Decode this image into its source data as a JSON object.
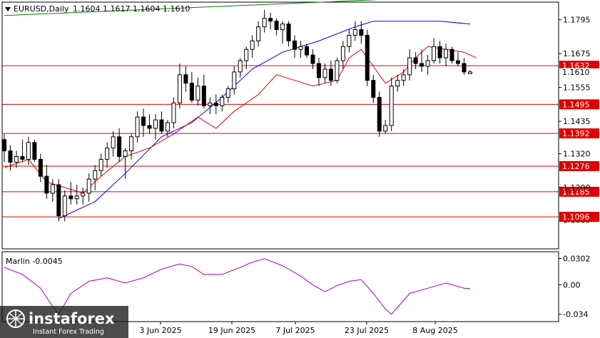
{
  "chart_data": [
    {
      "type": "candlestick",
      "header": {
        "symbol": "EURUSD,Daily",
        "ohlc": "1.1604 1.1617 1.1604 1.1610"
      },
      "y_ticks": [
        "1.1795",
        "1.1675",
        "1.1555",
        "1.1435",
        "1.1320",
        "1.1200"
      ],
      "y_ticks_partial": [
        "1.1610",
        "1.1085"
      ],
      "x_ticks": [
        "3 Jun 2025",
        "19 Jun 2025",
        "7 Jul 2025",
        "23 Jul 2025",
        "8 Aug 2025"
      ],
      "ylim": [
        1.0985,
        1.1855
      ],
      "current_price": 1.161,
      "levels": [
        {
          "value": 1.1632,
          "label": "1.1632"
        },
        {
          "value": 1.1495,
          "label": "1.1495"
        },
        {
          "value": 1.1392,
          "label": "1.1392"
        },
        {
          "value": 1.1276,
          "label": "1.1276"
        },
        {
          "value": 1.1185,
          "label": "1.1185"
        },
        {
          "value": 1.1096,
          "label": "1.1096"
        }
      ],
      "candles": [
        [
          1.137,
          1.139,
          1.129,
          1.133
        ],
        [
          1.133,
          1.135,
          1.126,
          1.129
        ],
        [
          1.129,
          1.133,
          1.127,
          1.131
        ],
        [
          1.131,
          1.137,
          1.129,
          1.13
        ],
        [
          1.13,
          1.138,
          1.128,
          1.136
        ],
        [
          1.136,
          1.137,
          1.129,
          1.13
        ],
        [
          1.13,
          1.132,
          1.122,
          1.124
        ],
        [
          1.124,
          1.128,
          1.116,
          1.118
        ],
        [
          1.118,
          1.123,
          1.115,
          1.121
        ],
        [
          1.121,
          1.123,
          1.108,
          1.11
        ],
        [
          1.11,
          1.119,
          1.108,
          1.117
        ],
        [
          1.117,
          1.122,
          1.114,
          1.116
        ],
        [
          1.116,
          1.121,
          1.114,
          1.117
        ],
        [
          1.117,
          1.12,
          1.114,
          1.118
        ],
        [
          1.118,
          1.125,
          1.115,
          1.123
        ],
        [
          1.123,
          1.128,
          1.119,
          1.126
        ],
        [
          1.126,
          1.132,
          1.124,
          1.13
        ],
        [
          1.13,
          1.136,
          1.127,
          1.134
        ],
        [
          1.134,
          1.14,
          1.131,
          1.138
        ],
        [
          1.138,
          1.141,
          1.129,
          1.131
        ],
        [
          1.131,
          1.134,
          1.123,
          1.133
        ],
        [
          1.133,
          1.139,
          1.13,
          1.138
        ],
        [
          1.138,
          1.147,
          1.136,
          1.145
        ],
        [
          1.145,
          1.148,
          1.138,
          1.142
        ],
        [
          1.142,
          1.146,
          1.139,
          1.141
        ],
        [
          1.141,
          1.146,
          1.137,
          1.144
        ],
        [
          1.144,
          1.147,
          1.139,
          1.14
        ],
        [
          1.14,
          1.144,
          1.138,
          1.143
        ],
        [
          1.143,
          1.152,
          1.141,
          1.15
        ],
        [
          1.15,
          1.164,
          1.148,
          1.16
        ],
        [
          1.16,
          1.163,
          1.154,
          1.157
        ],
        [
          1.157,
          1.161,
          1.15,
          1.151
        ],
        [
          1.151,
          1.159,
          1.149,
          1.156
        ],
        [
          1.156,
          1.16,
          1.148,
          1.149
        ],
        [
          1.149,
          1.152,
          1.146,
          1.15
        ],
        [
          1.15,
          1.153,
          1.146,
          1.149
        ],
        [
          1.149,
          1.153,
          1.147,
          1.152
        ],
        [
          1.152,
          1.156,
          1.15,
          1.155
        ],
        [
          1.155,
          1.163,
          1.153,
          1.161
        ],
        [
          1.161,
          1.166,
          1.159,
          1.165
        ],
        [
          1.165,
          1.17,
          1.162,
          1.169
        ],
        [
          1.169,
          1.174,
          1.166,
          1.172
        ],
        [
          1.172,
          1.179,
          1.17,
          1.177
        ],
        [
          1.177,
          1.183,
          1.175,
          1.18
        ],
        [
          1.18,
          1.182,
          1.176,
          1.179
        ],
        [
          1.179,
          1.18,
          1.174,
          1.176
        ],
        [
          1.176,
          1.179,
          1.171,
          1.178
        ],
        [
          1.178,
          1.179,
          1.17,
          1.172
        ],
        [
          1.172,
          1.174,
          1.166,
          1.169
        ],
        [
          1.169,
          1.172,
          1.166,
          1.17
        ],
        [
          1.17,
          1.171,
          1.166,
          1.167
        ],
        [
          1.167,
          1.169,
          1.162,
          1.164
        ],
        [
          1.164,
          1.166,
          1.156,
          1.159
        ],
        [
          1.159,
          1.164,
          1.157,
          1.162
        ],
        [
          1.162,
          1.165,
          1.156,
          1.158
        ],
        [
          1.158,
          1.166,
          1.157,
          1.165
        ],
        [
          1.165,
          1.172,
          1.162,
          1.17
        ],
        [
          1.17,
          1.176,
          1.168,
          1.174
        ],
        [
          1.174,
          1.179,
          1.172,
          1.176
        ],
        [
          1.176,
          1.179,
          1.171,
          1.174
        ],
        [
          1.174,
          1.176,
          1.156,
          1.158
        ],
        [
          1.158,
          1.16,
          1.15,
          1.152
        ],
        [
          1.152,
          1.154,
          1.138,
          1.14
        ],
        [
          1.14,
          1.144,
          1.139,
          1.142
        ],
        [
          1.142,
          1.159,
          1.14,
          1.156
        ],
        [
          1.156,
          1.16,
          1.154,
          1.158
        ],
        [
          1.158,
          1.162,
          1.156,
          1.16
        ],
        [
          1.16,
          1.169,
          1.158,
          1.166
        ],
        [
          1.166,
          1.168,
          1.162,
          1.164
        ],
        [
          1.164,
          1.169,
          1.161,
          1.163
        ],
        [
          1.163,
          1.167,
          1.16,
          1.165
        ],
        [
          1.165,
          1.173,
          1.164,
          1.17
        ],
        [
          1.17,
          1.172,
          1.164,
          1.166
        ],
        [
          1.166,
          1.171,
          1.163,
          1.169
        ],
        [
          1.169,
          1.17,
          1.164,
          1.165
        ],
        [
          1.165,
          1.168,
          1.163,
          1.164
        ],
        [
          1.164,
          1.166,
          1.16,
          1.161
        ],
        [
          1.1604,
          1.1617,
          1.1604,
          1.161
        ]
      ],
      "overlays": [
        {
          "name": "green",
          "color": "#008000",
          "points": [
            [
              0,
              1.181
            ],
            [
              77,
              1.188
            ]
          ]
        },
        {
          "name": "blue",
          "color": "#0000ff",
          "points": [
            [
              9,
              1.109
            ],
            [
              15,
              1.115
            ],
            [
              20,
              1.125
            ],
            [
              26,
              1.138
            ],
            [
              31,
              1.143
            ],
            [
              36,
              1.152
            ],
            [
              41,
              1.162
            ],
            [
              46,
              1.168
            ],
            [
              52,
              1.172
            ],
            [
              58,
              1.177
            ],
            [
              61,
              1.179
            ],
            [
              66,
              1.179
            ],
            [
              72,
              1.179
            ],
            [
              77,
              1.178
            ]
          ]
        },
        {
          "name": "red",
          "color": "#e60000",
          "points": [
            [
              0,
              1.127
            ],
            [
              4,
              1.13
            ],
            [
              7,
              1.122
            ],
            [
              10,
              1.12
            ],
            [
              13,
              1.118
            ],
            [
              16,
              1.124
            ],
            [
              20,
              1.131
            ],
            [
              24,
              1.134
            ],
            [
              28,
              1.139
            ],
            [
              32,
              1.145
            ],
            [
              35,
              1.141
            ],
            [
              38,
              1.147
            ],
            [
              42,
              1.153
            ],
            [
              45,
              1.16
            ],
            [
              48,
              1.158
            ],
            [
              51,
              1.156
            ],
            [
              55,
              1.158
            ],
            [
              57,
              1.166
            ],
            [
              59,
              1.169
            ],
            [
              61,
              1.163
            ],
            [
              63,
              1.157
            ],
            [
              66,
              1.161
            ],
            [
              68,
              1.166
            ],
            [
              70,
              1.17
            ],
            [
              73,
              1.169
            ],
            [
              76,
              1.168
            ],
            [
              78,
              1.166
            ]
          ]
        }
      ]
    },
    {
      "type": "line",
      "title": "Marlin -0.0045",
      "y_ticks": [
        "0.0302",
        "0.00",
        "-0.034"
      ],
      "ylim": [
        -0.04,
        0.034
      ],
      "color": "#b000b0",
      "x": [
        0,
        3,
        6,
        8,
        9,
        11,
        14,
        17,
        20,
        23,
        26,
        29,
        31,
        33,
        36,
        39,
        41,
        43,
        46,
        49,
        51,
        53,
        55,
        57,
        59,
        61,
        63,
        64,
        65,
        67,
        70,
        73,
        76,
        77
      ],
      "values": [
        0.02,
        0.012,
        -0.004,
        -0.025,
        -0.034,
        -0.01,
        0.004,
        0.008,
        0.002,
        0.008,
        0.018,
        0.024,
        0.021,
        0.012,
        0.012,
        0.02,
        0.026,
        0.03,
        0.022,
        0.01,
        0.0,
        -0.008,
        -0.001,
        0.004,
        0.006,
        -0.01,
        -0.028,
        -0.034,
        -0.026,
        -0.01,
        -0.004,
        0.002,
        -0.004,
        -0.0045
      ]
    }
  ],
  "watermark": {
    "brand": "instaforex",
    "tagline": "Instant Forex Trading"
  }
}
